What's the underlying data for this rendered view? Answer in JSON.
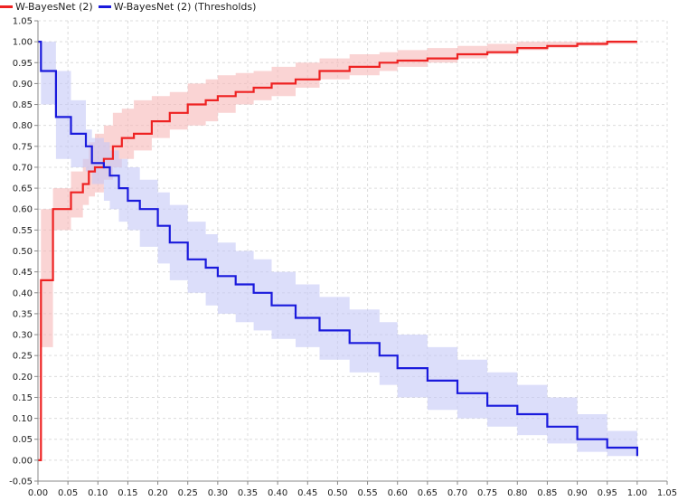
{
  "chart_data": {
    "type": "line",
    "title": "",
    "xlabel": "",
    "ylabel": "",
    "xlim": [
      0,
      1.05
    ],
    "ylim": [
      -0.05,
      1.05
    ],
    "grid": true,
    "legend_position": "top-left",
    "x_ticks": [
      "0.00",
      "0.05",
      "0.10",
      "0.15",
      "0.20",
      "0.25",
      "0.30",
      "0.35",
      "0.40",
      "0.45",
      "0.50",
      "0.55",
      "0.60",
      "0.65",
      "0.70",
      "0.75",
      "0.80",
      "0.85",
      "0.90",
      "0.95",
      "1.00",
      "1.05"
    ],
    "y_ticks": [
      "-0.05",
      "0.00",
      "0.05",
      "0.10",
      "0.15",
      "0.20",
      "0.25",
      "0.30",
      "0.35",
      "0.40",
      "0.45",
      "0.50",
      "0.55",
      "0.60",
      "0.65",
      "0.70",
      "0.75",
      "0.80",
      "0.85",
      "0.90",
      "0.95",
      "1.00",
      "1.05"
    ],
    "series": [
      {
        "name": "W-BayesNet (2)",
        "color": "#ee2222",
        "band_color": "#f7b8b8",
        "x": [
          0.0,
          0.005,
          0.025,
          0.055,
          0.075,
          0.085,
          0.095,
          0.11,
          0.125,
          0.14,
          0.16,
          0.19,
          0.22,
          0.25,
          0.28,
          0.3,
          0.33,
          0.36,
          0.39,
          0.43,
          0.47,
          0.52,
          0.57,
          0.6,
          0.65,
          0.7,
          0.75,
          0.8,
          0.85,
          0.9,
          0.95,
          1.0
        ],
        "y": [
          0.0,
          0.43,
          0.6,
          0.64,
          0.66,
          0.69,
          0.7,
          0.72,
          0.75,
          0.77,
          0.78,
          0.81,
          0.83,
          0.85,
          0.86,
          0.87,
          0.88,
          0.89,
          0.9,
          0.91,
          0.93,
          0.94,
          0.95,
          0.955,
          0.96,
          0.97,
          0.975,
          0.985,
          0.99,
          0.995,
          1.0,
          1.0
        ],
        "lower": [
          0.0,
          0.27,
          0.55,
          0.58,
          0.61,
          0.63,
          0.64,
          0.67,
          0.7,
          0.72,
          0.74,
          0.77,
          0.79,
          0.8,
          0.81,
          0.83,
          0.85,
          0.86,
          0.87,
          0.89,
          0.91,
          0.92,
          0.93,
          0.94,
          0.95,
          0.96,
          0.97,
          0.98,
          0.985,
          0.99,
          0.995,
          1.0
        ],
        "upper": [
          0.0,
          0.6,
          0.65,
          0.69,
          0.72,
          0.76,
          0.78,
          0.8,
          0.83,
          0.84,
          0.86,
          0.87,
          0.88,
          0.9,
          0.91,
          0.92,
          0.925,
          0.93,
          0.94,
          0.95,
          0.96,
          0.97,
          0.975,
          0.98,
          0.985,
          0.99,
          0.995,
          1.0,
          1.0,
          1.0,
          1.0,
          1.0
        ]
      },
      {
        "name": "W-BayesNet (2) (Thresholds)",
        "color": "#1a1adc",
        "band_color": "#c4c8f7",
        "x": [
          0.0,
          0.005,
          0.03,
          0.055,
          0.08,
          0.09,
          0.11,
          0.12,
          0.135,
          0.15,
          0.17,
          0.2,
          0.22,
          0.25,
          0.28,
          0.3,
          0.33,
          0.36,
          0.39,
          0.43,
          0.47,
          0.52,
          0.57,
          0.6,
          0.65,
          0.7,
          0.75,
          0.8,
          0.85,
          0.9,
          0.95,
          1.0
        ],
        "y": [
          1.0,
          0.93,
          0.82,
          0.78,
          0.75,
          0.71,
          0.7,
          0.68,
          0.65,
          0.62,
          0.6,
          0.56,
          0.52,
          0.48,
          0.46,
          0.44,
          0.42,
          0.4,
          0.37,
          0.34,
          0.31,
          0.28,
          0.25,
          0.22,
          0.19,
          0.16,
          0.13,
          0.11,
          0.08,
          0.05,
          0.03,
          0.01
        ],
        "lower": [
          1.0,
          0.85,
          0.72,
          0.7,
          0.69,
          0.66,
          0.62,
          0.6,
          0.57,
          0.55,
          0.51,
          0.47,
          0.43,
          0.4,
          0.37,
          0.35,
          0.33,
          0.31,
          0.29,
          0.27,
          0.24,
          0.21,
          0.18,
          0.15,
          0.12,
          0.1,
          0.08,
          0.06,
          0.04,
          0.02,
          0.01,
          0.0
        ],
        "upper": [
          1.0,
          1.0,
          0.93,
          0.86,
          0.79,
          0.77,
          0.76,
          0.74,
          0.72,
          0.7,
          0.67,
          0.64,
          0.61,
          0.57,
          0.54,
          0.52,
          0.5,
          0.48,
          0.45,
          0.42,
          0.39,
          0.36,
          0.33,
          0.3,
          0.27,
          0.24,
          0.21,
          0.18,
          0.15,
          0.11,
          0.07,
          0.03
        ]
      }
    ]
  }
}
